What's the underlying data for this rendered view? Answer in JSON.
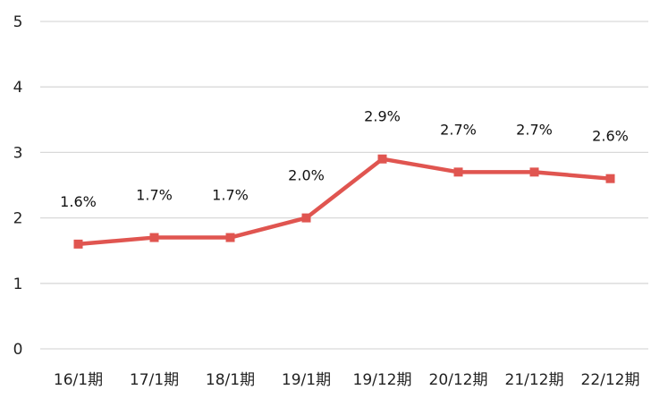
{
  "chart_data": {
    "type": "line",
    "categories": [
      "16/1期",
      "17/1期",
      "18/1期",
      "19/1期",
      "19/12期",
      "20/12期",
      "21/12期",
      "22/12期"
    ],
    "series": [
      {
        "values": [
          1.6,
          1.7,
          1.7,
          2.0,
          2.9,
          2.7,
          2.7,
          2.6
        ],
        "labels": [
          "1.6%",
          "1.7%",
          "1.7%",
          "2.0%",
          "2.9%",
          "2.7%",
          "2.7%",
          "2.6%"
        ],
        "color": "#e05550",
        "marker": "square"
      }
    ],
    "yticks": [
      "0",
      "1",
      "2",
      "3",
      "4",
      "5"
    ],
    "ylim": [
      0,
      5
    ],
    "grid": true,
    "legend": "none",
    "title": "",
    "xlabel": "",
    "ylabel": ""
  }
}
